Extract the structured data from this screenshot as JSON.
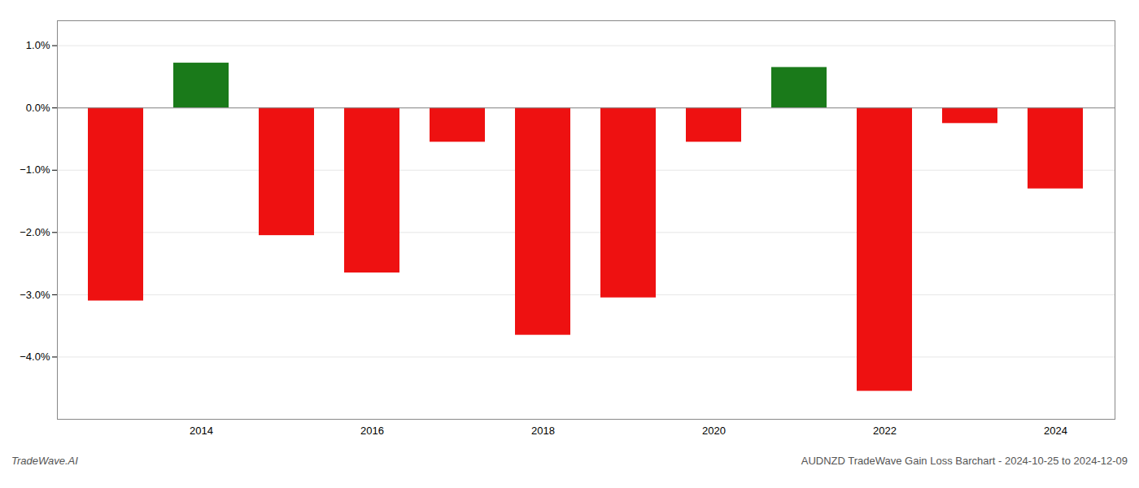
{
  "chart_data": {
    "type": "bar",
    "categories": [
      null,
      "2014",
      null,
      "2016",
      null,
      "2018",
      null,
      "2020",
      null,
      "2022",
      null,
      "2024"
    ],
    "values": [
      -3.1,
      0.72,
      -2.05,
      -2.65,
      -0.55,
      -3.65,
      -3.05,
      -0.55,
      0.65,
      -4.55,
      -0.25,
      -1.3
    ],
    "colors": [
      "#ee1111",
      "#1a7a1a",
      "#ee1111",
      "#ee1111",
      "#ee1111",
      "#ee1111",
      "#ee1111",
      "#ee1111",
      "#1a7a1a",
      "#ee1111",
      "#ee1111",
      "#ee1111"
    ],
    "ylim": [
      -5.0,
      1.4
    ],
    "yticks": [
      {
        "value": -4.0,
        "label": "−4.0%"
      },
      {
        "value": -3.0,
        "label": "−3.0%"
      },
      {
        "value": -2.0,
        "label": "−2.0%"
      },
      {
        "value": -1.0,
        "label": "−1.0%"
      },
      {
        "value": 0.0,
        "label": "0.0%"
      },
      {
        "value": 1.0,
        "label": "1.0%"
      }
    ],
    "grid": true,
    "annotations": [
      "TradeWave.AI",
      "AUDNZD TradeWave Gain Loss Barchart - 2024-10-25 to 2024-12-09"
    ]
  }
}
